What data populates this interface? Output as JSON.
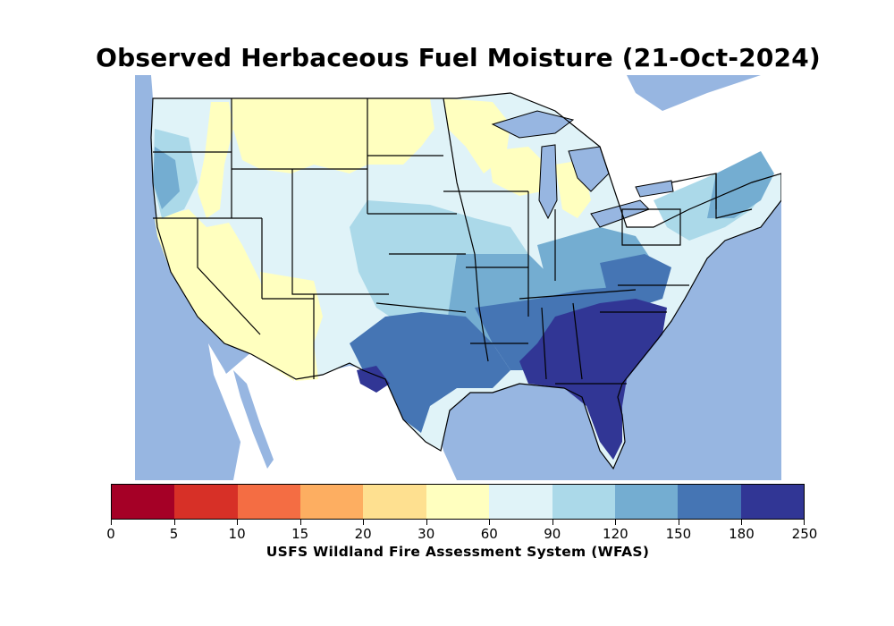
{
  "title": "Observed Herbaceous Fuel Moisture (21-Oct-2024)",
  "colorbar": {
    "caption": "USFS Wildland Fire Assessment System (WFAS)",
    "boundaries": [
      "0",
      "5",
      "10",
      "15",
      "20",
      "30",
      "60",
      "90",
      "120",
      "150",
      "180",
      "250"
    ],
    "colors": [
      "#a50026",
      "#d73027",
      "#f46d43",
      "#fdae61",
      "#fee090",
      "#ffffbf",
      "#e0f3f8",
      "#abd9e9",
      "#74add1",
      "#4575b4",
      "#313695"
    ]
  },
  "map": {
    "ocean_color": "#97b6e1",
    "land_outside_color": "#ffffff",
    "regions": [
      {
        "name": "Pacific Northwest coast",
        "band": "120-150"
      },
      {
        "name": "Great Basin and California",
        "band": "30-60"
      },
      {
        "name": "Northern Rockies and Plains",
        "band": "30-60"
      },
      {
        "name": "Central Plains",
        "band": "90-120"
      },
      {
        "name": "Texas",
        "band": "150-180"
      },
      {
        "name": "Mississippi Valley",
        "band": "150-180"
      },
      {
        "name": "Southeast",
        "band": "180-250"
      },
      {
        "name": "Northeast",
        "band": "120-150"
      }
    ]
  }
}
